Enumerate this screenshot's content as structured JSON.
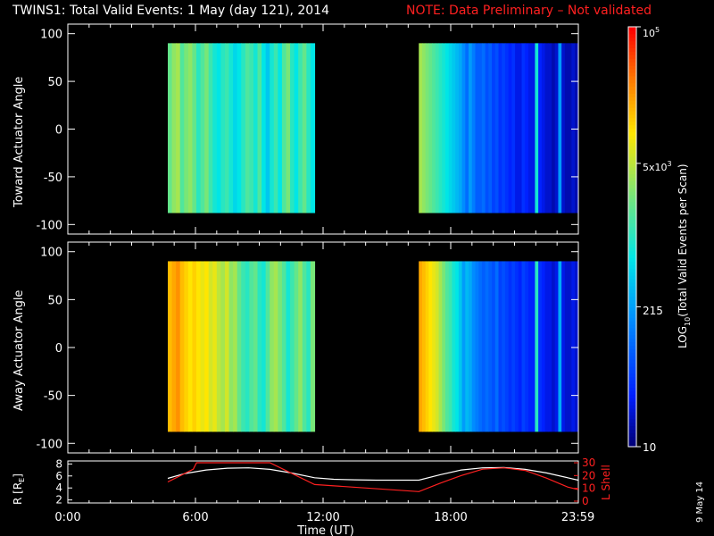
{
  "header": {
    "title": "TWINS1: Total Valid Events:  1 May (day 121), 2014",
    "note": "NOTE: Data Preliminary – Not validated"
  },
  "colors": {
    "background": "#000000",
    "axes": "#ffffff",
    "note": "#ff2020",
    "lshell": "#ff2020",
    "r_line": "#ffffff"
  },
  "chart_data": [
    {
      "type": "heatmap",
      "name": "toward",
      "ylabel": "Toward Actuator Angle",
      "xlim": [
        0,
        24
      ],
      "ylim": [
        -110,
        110
      ],
      "yticks": [
        100,
        50,
        0,
        -50,
        -100
      ],
      "data_ylim": [
        -88,
        90
      ],
      "colorscale": "log",
      "segments": [
        {
          "x": [
            4.7,
            11.6
          ],
          "log_values": [
            3.3,
            3.5,
            3.6,
            3.2,
            3.4,
            3.5,
            3.3,
            3.0,
            3.2,
            3.4,
            3.1,
            2.9,
            2.8,
            3.0,
            3.1,
            2.9,
            2.7,
            2.8,
            3.0,
            3.2,
            3.1,
            2.9,
            3.2,
            2.8,
            2.6,
            2.9,
            3.1,
            2.8,
            3.2,
            3.4,
            3.0,
            2.8,
            3.1,
            3.3,
            3.0,
            2.8
          ]
        },
        {
          "x": [
            16.5,
            23.99
          ],
          "log_values": [
            3.6,
            3.5,
            3.4,
            3.3,
            3.2,
            3.1,
            3.0,
            2.9,
            2.8,
            2.7,
            2.6,
            2.5,
            2.4,
            2.2,
            2.0,
            2.3,
            2.1,
            1.9,
            1.9,
            2.0,
            1.8,
            1.9,
            1.7,
            1.8,
            1.6,
            1.7,
            1.6,
            1.5,
            1.6,
            1.4,
            1.4,
            1.6,
            1.5,
            1.4,
            1.4,
            2.9,
            1.5,
            1.4,
            1.3,
            1.3,
            1.2,
            1.3,
            2.3,
            1.3,
            1.2,
            1.2,
            1.3,
            1.2
          ]
        }
      ]
    },
    {
      "type": "heatmap",
      "name": "away",
      "ylabel": "Away Actuator Angle",
      "xlim": [
        0,
        24
      ],
      "ylim": [
        -110,
        110
      ],
      "yticks": [
        100,
        50,
        0,
        -50,
        -100
      ],
      "data_ylim": [
        -88,
        90
      ],
      "colorscale": "log",
      "segments": [
        {
          "x": [
            4.7,
            11.6
          ],
          "log_values": [
            4.2,
            4.3,
            4.4,
            4.2,
            4.1,
            4.0,
            4.1,
            4.0,
            3.9,
            4.0,
            3.8,
            3.9,
            3.7,
            3.6,
            3.8,
            3.5,
            3.6,
            3.3,
            3.1,
            3.0,
            3.2,
            3.3,
            3.0,
            2.9,
            3.2,
            3.5,
            3.6,
            3.4,
            3.2,
            2.9,
            3.1,
            3.3,
            3.5,
            3.2,
            3.0,
            3.4
          ]
        },
        {
          "x": [
            16.5,
            23.99
          ],
          "log_values": [
            4.3,
            4.2,
            4.1,
            4.0,
            3.9,
            3.8,
            3.6,
            3.4,
            3.2,
            3.1,
            2.9,
            2.8,
            2.6,
            2.3,
            2.5,
            2.4,
            2.2,
            2.1,
            2.0,
            1.9,
            2.0,
            1.9,
            1.8,
            2.0,
            1.7,
            1.8,
            1.7,
            1.6,
            1.7,
            1.6,
            1.5,
            1.7,
            1.6,
            1.5,
            1.5,
            3.0,
            1.6,
            1.5,
            1.4,
            1.4,
            1.3,
            1.4,
            2.4,
            1.4,
            1.3,
            1.3,
            1.4,
            1.3
          ]
        }
      ]
    },
    {
      "type": "colorbar",
      "label": "LOG10(Total Valid Events per Scan)",
      "range": [
        10,
        100000
      ],
      "ticks": [
        {
          "value": 10,
          "label": "10"
        },
        {
          "value": 215,
          "label": "215"
        },
        {
          "value": 5000,
          "label": "5x10",
          "sup": "3"
        },
        {
          "value": 100000,
          "label": "10",
          "sup": "5"
        }
      ]
    },
    {
      "type": "line",
      "name": "ephemeris",
      "x_label": "Time (UT)",
      "xticks": [
        {
          "value": 0,
          "label": "0:00"
        },
        {
          "value": 6,
          "label": "6:00"
        },
        {
          "value": 12,
          "label": "12:00"
        },
        {
          "value": 18,
          "label": "18:00"
        },
        {
          "value": 23.983,
          "label": "23:59"
        }
      ],
      "y_left": {
        "label": "R [RE]",
        "ylim": [
          1.5,
          8.5
        ],
        "ticks": [
          8,
          6,
          4,
          2
        ]
      },
      "y_right": {
        "label": "L Shell",
        "ylim": [
          0,
          30
        ],
        "ticks": [
          30,
          20,
          10,
          0
        ]
      },
      "series": [
        {
          "axis": "left",
          "x": [
            4.7,
            5.5,
            6.5,
            7.5,
            8.5,
            9.5,
            10.5,
            11.6,
            12.5,
            13.5,
            14.5,
            15.5,
            16.5,
            17.5,
            18.5,
            19.5,
            20.5,
            21.5,
            22.5,
            23.5,
            23.99
          ],
          "y": [
            5.6,
            6.4,
            7.0,
            7.3,
            7.35,
            7.1,
            6.5,
            5.7,
            5.45,
            5.35,
            5.3,
            5.3,
            5.3,
            6.2,
            7.0,
            7.35,
            7.4,
            7.1,
            6.5,
            5.7,
            5.3
          ]
        },
        {
          "axis": "right",
          "x": [
            4.7,
            5.9,
            6.05,
            9.5,
            11.6,
            16.5,
            17.5,
            18.5,
            19.5,
            20.5,
            21.5,
            22.5,
            23.5,
            23.99
          ],
          "y": [
            15,
            25,
            30,
            30,
            13,
            7.5,
            14,
            20,
            25,
            26,
            24,
            18,
            11,
            9
          ]
        }
      ]
    }
  ],
  "labels": {
    "toward_ylabel": "Toward Actuator Angle",
    "away_ylabel": "Away Actuator Angle",
    "cb_tick_min": "10",
    "cb_tick_215": "215",
    "cb_tick_5k": "5x10",
    "cb_tick_5k_sup": "3",
    "cb_tick_max": "10",
    "cb_tick_max_sup": "5",
    "cb_label_pre": "LOG",
    "cb_label_sub": "10",
    "cb_label_post": "(Total Valid Events per Scan)",
    "r_label_pre": "R [R",
    "r_label_sub": "E",
    "r_label_post": "]",
    "lshell_label": "L Shell",
    "time_label": "Time (UT)",
    "datestamp": "9 May 14"
  }
}
